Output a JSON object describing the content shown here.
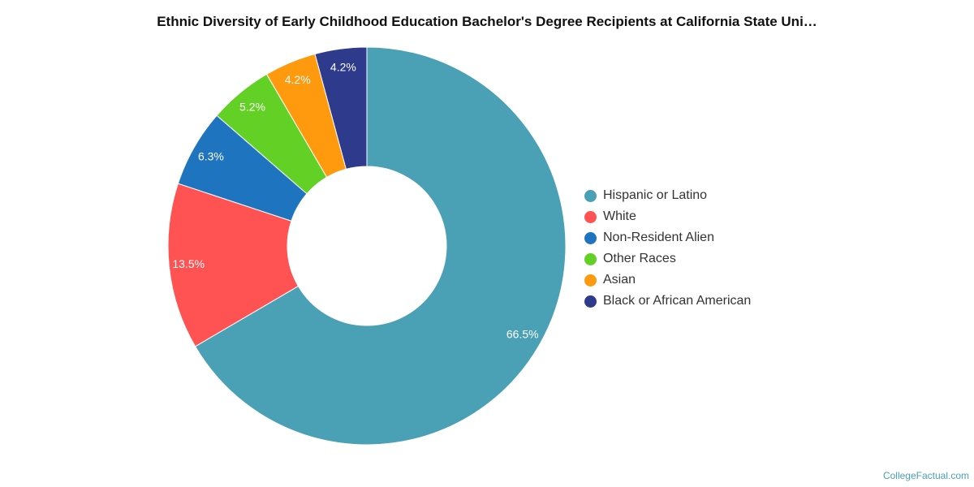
{
  "chart_data": {
    "type": "pie",
    "title": "Ethnic Diversity of Early Childhood Education Bachelor's Degree Recipients at California State Uni…",
    "categories": [
      "Hispanic or Latino",
      "White",
      "Non-Resident Alien",
      "Other Races",
      "Asian",
      "Black or African American"
    ],
    "values": [
      66.5,
      13.5,
      6.3,
      5.2,
      4.2,
      4.2
    ],
    "labels": [
      "66.5%",
      "13.5%",
      "6.3%",
      "5.2%",
      "4.2%",
      "4.2%"
    ],
    "colors": [
      "#4aa0b4",
      "#ff5252",
      "#1f74c0",
      "#62d025",
      "#ff9a0e",
      "#2e3a8c"
    ],
    "donut": true,
    "legend": "right"
  },
  "source": "CollegeFactual.com"
}
